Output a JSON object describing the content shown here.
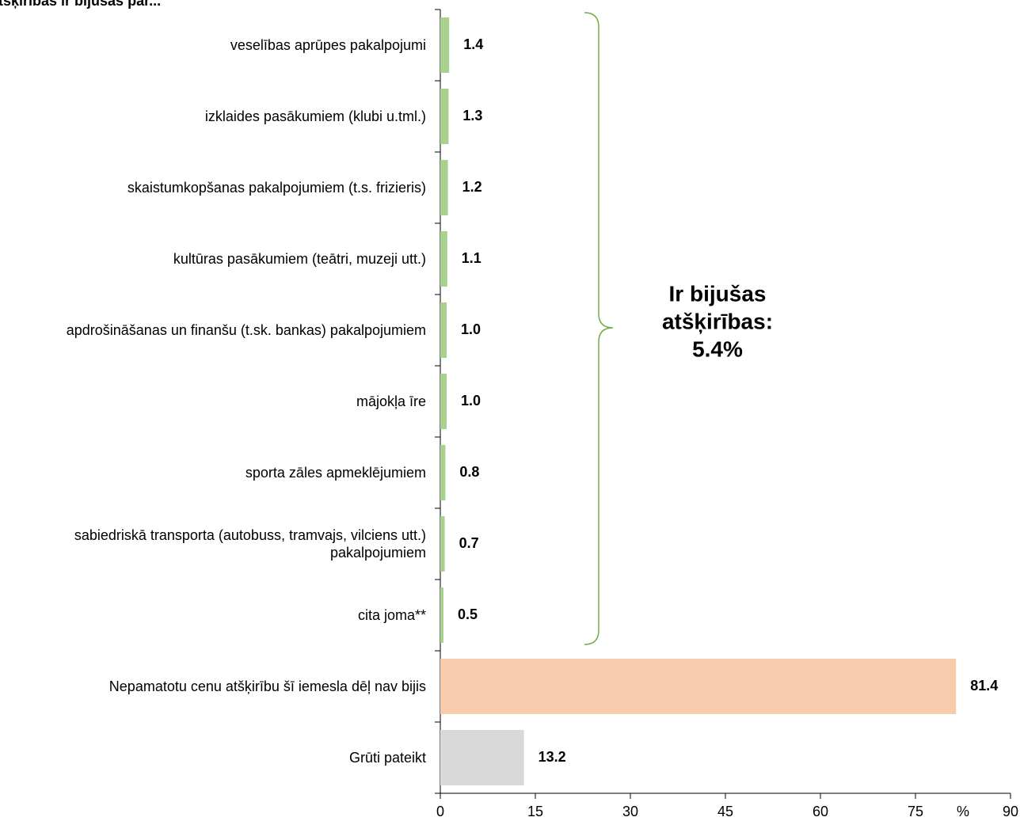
{
  "chart_data": {
    "type": "barh",
    "title": "tšķirības ir bijušas par...",
    "categories": [
      "veselības aprūpes pakalpojumi",
      "izklaides pasākumiem (klubi u.tml.)",
      "skaistumkopšanas pakalpojumiem (t.s. frizieris)",
      "kultūras pasākumiem (teātri, muzeji utt.)",
      "apdrošināšanas un finanšu (t.sk. bankas) pakalpojumiem",
      "mājokļa īre",
      "sporta zāles apmeklējumiem",
      "sabiedriskā transporta (autobuss, tramvajs, vilciens utt.)\npakalpojumiem",
      "cita joma**",
      "Nepamatotu cenu atšķirību šī iemesla dēļ nav bijis",
      "Grūti pateikt"
    ],
    "values": [
      1.4,
      1.3,
      1.2,
      1.1,
      1.0,
      1.0,
      0.8,
      0.7,
      0.5,
      81.4,
      13.2
    ],
    "value_labels": [
      "1.4",
      "1.3",
      "1.2",
      "1.1",
      "1.0",
      "1.0",
      "0.8",
      "0.7",
      "0.5",
      "81.4",
      "13.2"
    ],
    "colors": [
      "#a9d18e",
      "#a9d18e",
      "#a9d18e",
      "#a9d18e",
      "#a9d18e",
      "#a9d18e",
      "#a9d18e",
      "#a9d18e",
      "#a9d18e",
      "#f8cbad",
      "#d9d9d9"
    ],
    "x_label": "%",
    "xlim": [
      0,
      90
    ],
    "xticks": [
      0,
      15,
      30,
      45,
      60,
      75,
      90
    ],
    "annotation": [
      "Ir bijušas",
      "atšķirības:",
      "5.4%"
    ],
    "annotation_color": "#70ad47"
  }
}
